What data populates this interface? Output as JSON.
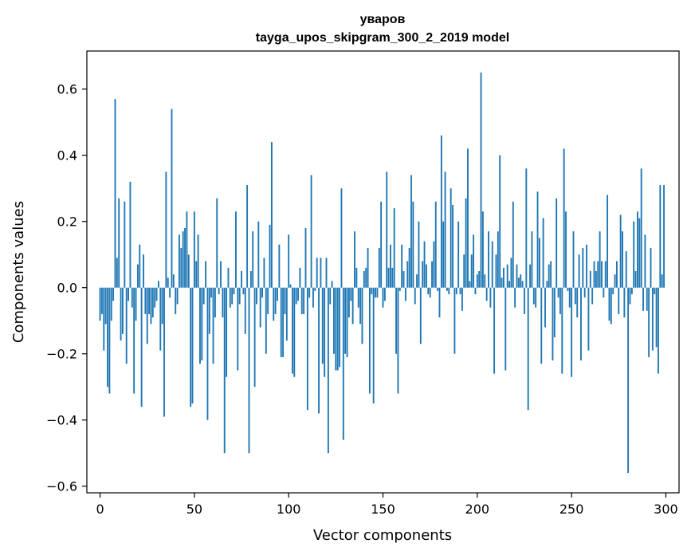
{
  "chart_data": {
    "type": "bar",
    "title": "уваров",
    "subtitle": "tayga_upos_skipgram_300_2_2019 model",
    "xlabel": "Vector components",
    "ylabel": "Components values",
    "xlim": [
      -7,
      307
    ],
    "ylim": [
      -0.62,
      0.715
    ],
    "xticks": [
      0,
      50,
      100,
      150,
      200,
      250,
      300
    ],
    "yticks": [
      -0.6,
      -0.4,
      -0.2,
      0.0,
      0.2,
      0.4,
      0.6
    ],
    "ytick_labels": [
      "−0.6",
      "−0.4",
      "−0.2",
      "0.0",
      "0.2",
      "0.4",
      "0.6"
    ],
    "bar_color": "#1f77b4",
    "x": "0..299",
    "values": [
      -0.1,
      -0.08,
      -0.19,
      -0.11,
      -0.3,
      -0.32,
      -0.1,
      -0.04,
      0.57,
      0.09,
      0.27,
      -0.16,
      -0.14,
      0.26,
      -0.23,
      -0.04,
      0.32,
      -0.06,
      -0.32,
      -0.1,
      0.07,
      0.13,
      -0.36,
      0.1,
      -0.08,
      -0.17,
      -0.08,
      -0.11,
      -0.09,
      -0.06,
      -0.04,
      0.02,
      -0.19,
      -0.11,
      -0.39,
      0.35,
      0.03,
      -0.03,
      0.54,
      0.04,
      -0.08,
      -0.05,
      0.16,
      0.12,
      0.17,
      0.18,
      0.23,
      0.1,
      -0.36,
      -0.35,
      0.23,
      0.08,
      0.16,
      -0.23,
      -0.22,
      -0.05,
      0.08,
      -0.4,
      -0.14,
      -0.03,
      -0.23,
      -0.09,
      0.27,
      -0.02,
      0.08,
      -0.09,
      -0.5,
      -0.27,
      0.06,
      -0.06,
      -0.05,
      -0.02,
      0.23,
      -0.25,
      -0.05,
      0.05,
      -0.02,
      -0.14,
      0.31,
      -0.5,
      0.05,
      0.17,
      -0.3,
      -0.05,
      0.2,
      -0.12,
      -0.03,
      0.09,
      -0.2,
      -0.08,
      0.19,
      0.44,
      -0.1,
      -0.08,
      -0.04,
      0.13,
      -0.21,
      -0.21,
      -0.08,
      -0.16,
      0.16,
      0.01,
      -0.26,
      -0.27,
      -0.05,
      -0.04,
      0.06,
      -0.08,
      -0.08,
      0.18,
      -0.37,
      -0.03,
      0.34,
      -0.06,
      -0.01,
      0.09,
      -0.38,
      0.09,
      -0.23,
      -0.27,
      0.09,
      -0.5,
      -0.05,
      0.02,
      -0.2,
      -0.25,
      -0.25,
      -0.24,
      0.3,
      -0.46,
      -0.2,
      -0.21,
      -0.09,
      -0.04,
      -0.11,
      0.17,
      0.06,
      -0.06,
      -0.11,
      -0.17,
      0.05,
      0.06,
      0.12,
      -0.32,
      -0.02,
      -0.35,
      -0.03,
      -0.03,
      0.12,
      0.26,
      -0.06,
      -0.04,
      0.35,
      0.06,
      0.13,
      0.06,
      0.24,
      -0.2,
      -0.32,
      -0.01,
      0.13,
      0.05,
      -0.04,
      0.08,
      0.12,
      0.34,
      0.26,
      -0.05,
      0.04,
      0.2,
      -0.17,
      0.08,
      0.14,
      0.07,
      -0.02,
      -0.03,
      0.08,
      0.14,
      0.26,
      -0.01,
      -0.09,
      0.46,
      0.2,
      0.35,
      -0.01,
      -0.02,
      0.3,
      0.25,
      -0.2,
      -0.02,
      0.2,
      -0.02,
      -0.07,
      0.1,
      0.27,
      0.42,
      0.02,
      0.1,
      0.16,
      -0.02,
      0.04,
      0.05,
      0.65,
      0.23,
      0.04,
      -0.04,
      0.17,
      -0.06,
      0.14,
      -0.26,
      0.1,
      0.17,
      0.4,
      0.03,
      0.06,
      -0.25,
      0.07,
      0.02,
      0.09,
      0.26,
      -0.06,
      0.07,
      0.03,
      0.04,
      0.02,
      -0.08,
      0.36,
      -0.37,
      0.07,
      0.17,
      -0.05,
      -0.06,
      0.29,
      0.15,
      -0.23,
      0.21,
      -0.12,
      0.02,
      0.07,
      0.08,
      -0.22,
      -0.15,
      0.27,
      -0.03,
      -0.08,
      -0.26,
      0.42,
      0.23,
      -0.01,
      -0.06,
      -0.27,
      0.17,
      -0.05,
      -0.09,
      0.1,
      -0.22,
      0.12,
      -0.03,
      0.13,
      -0.19,
      0.05,
      -0.05,
      0.08,
      0.05,
      0.08,
      0.17,
      0.08,
      -0.03,
      0.08,
      0.28,
      -0.1,
      -0.11,
      -0.02,
      0.04,
      0.08,
      -0.08,
      0.22,
      0.17,
      -0.09,
      0.11,
      -0.56,
      -0.05,
      -0.02,
      0.2,
      0.05,
      0.23,
      0.21,
      0.36,
      -0.07,
      0.16,
      -0.07,
      -0.21,
      0.12,
      -0.19,
      -0.02,
      -0.18,
      -0.26,
      0.31,
      0.04,
      0.31
    ]
  }
}
